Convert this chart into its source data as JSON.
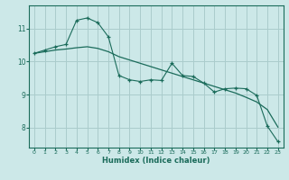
{
  "xlabel": "Humidex (Indice chaleur)",
  "bg_color": "#cce8e8",
  "grid_color": "#aacccc",
  "line_color": "#1a6b5a",
  "x_ticks": [
    0,
    1,
    2,
    3,
    4,
    5,
    6,
    7,
    8,
    9,
    10,
    11,
    12,
    13,
    14,
    15,
    16,
    17,
    18,
    19,
    20,
    21,
    22,
    23
  ],
  "y_ticks": [
    8,
    9,
    10,
    11
  ],
  "ylim": [
    7.4,
    11.7
  ],
  "xlim": [
    -0.5,
    23.5
  ],
  "data_x": [
    0,
    1,
    2,
    3,
    4,
    5,
    6,
    7,
    8,
    9,
    10,
    11,
    12,
    13,
    14,
    15,
    16,
    17,
    18,
    19,
    20,
    21,
    22,
    23
  ],
  "data_y": [
    10.25,
    10.35,
    10.45,
    10.52,
    11.25,
    11.32,
    11.18,
    10.75,
    9.58,
    9.45,
    9.4,
    9.45,
    9.43,
    9.95,
    9.58,
    9.55,
    9.35,
    9.08,
    9.18,
    9.2,
    9.18,
    8.98,
    8.05,
    7.58
  ],
  "trend_x": [
    0,
    1,
    2,
    3,
    4,
    5,
    6,
    7,
    8,
    9,
    10,
    11,
    12,
    13,
    14,
    15,
    16,
    17,
    18,
    19,
    20,
    21,
    22,
    23
  ],
  "trend_y": [
    10.25,
    10.3,
    10.35,
    10.38,
    10.42,
    10.45,
    10.4,
    10.3,
    10.15,
    10.05,
    9.95,
    9.85,
    9.75,
    9.65,
    9.55,
    9.45,
    9.35,
    9.25,
    9.15,
    9.05,
    8.92,
    8.78,
    8.55,
    8.02
  ]
}
